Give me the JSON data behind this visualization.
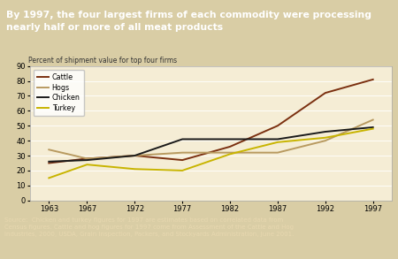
{
  "title": "By 1997, the four largest firms of each commodity were processing\nnearly half or more of all meat products",
  "ylabel": "Percent of shipment value for top four firms",
  "title_bg": "#6b2f08",
  "title_color": "#ffffff",
  "plot_bg": "#f5edd5",
  "outer_bg": "#d9cda5",
  "footer_bg": "#7a3e0a",
  "footer_color": "#e8d8b0",
  "years": [
    1963,
    1967,
    1972,
    1977,
    1982,
    1987,
    1992,
    1997
  ],
  "cattle": [
    25,
    28,
    30,
    27,
    36,
    50,
    72,
    81
  ],
  "hogs": [
    34,
    28,
    30,
    32,
    32,
    32,
    40,
    54
  ],
  "chicken": [
    26,
    27,
    30,
    41,
    41,
    41,
    46,
    49
  ],
  "turkey": [
    15,
    24,
    21,
    20,
    31,
    39,
    42,
    48
  ],
  "cattle_color": "#7b3010",
  "hogs_color": "#b89a60",
  "chicken_color": "#1a1a1a",
  "turkey_color": "#c8b400",
  "ylim": [
    0,
    90
  ],
  "yticks": [
    0,
    10,
    20,
    30,
    40,
    50,
    60,
    70,
    80,
    90
  ]
}
